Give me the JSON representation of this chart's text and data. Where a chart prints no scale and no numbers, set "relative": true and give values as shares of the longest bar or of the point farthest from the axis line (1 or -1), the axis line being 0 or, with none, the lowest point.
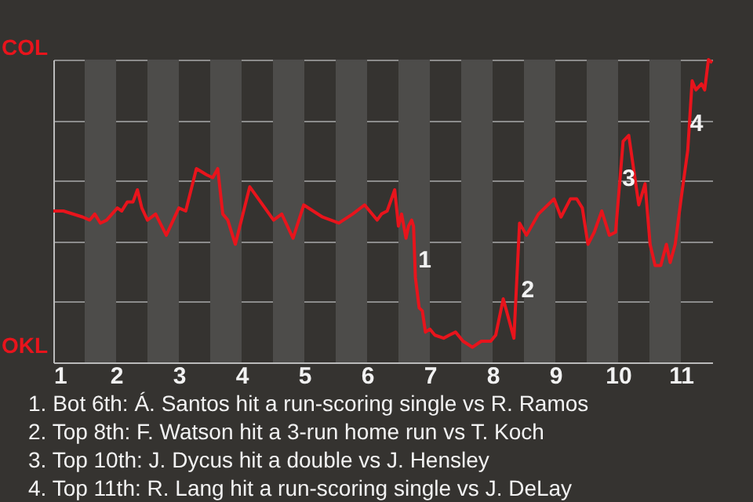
{
  "chart_data": {
    "type": "line",
    "relative": true,
    "x": [
      1,
      1.16,
      1.47,
      1.58,
      1.66,
      1.75,
      1.85,
      2.02,
      2.09,
      2.18,
      2.27,
      2.34,
      2.41,
      2.5,
      2.63,
      2.8,
      3,
      3.11,
      3.28,
      3.44,
      3.54,
      3.62,
      3.7,
      3.78,
      3.9,
      4.13,
      4.51,
      4.64,
      4.82,
      4.99,
      5.29,
      5.55,
      5.77,
      5.96,
      6.16,
      6.23,
      6.32,
      6.44,
      6.5,
      6.55,
      6.62,
      6.66,
      6.71,
      6.74,
      6.77,
      6.83,
      6.88,
      6.93,
      7,
      7.08,
      7.22,
      7.31,
      7.41,
      7.53,
      7.68,
      7.82,
      7.97,
      8.05,
      8.17,
      8.34,
      8.43,
      8.54,
      8.73,
      8.98,
      9.09,
      9.24,
      9.34,
      9.43,
      9.52,
      9.62,
      9.74,
      9.86,
      9.96,
      10.08,
      10.17,
      10.33,
      10.43,
      10.51,
      10.59,
      10.68,
      10.77,
      10.83,
      10.91,
      11.01,
      11.11,
      11.18,
      11.24,
      11.33,
      11.38,
      11.44,
      11.5
    ],
    "series": [
      {
        "color": "#e8141c",
        "values": [
          0.5,
          0.5,
          0.48,
          0.47,
          0.49,
          0.46,
          0.47,
          0.51,
          0.5,
          0.53,
          0.53,
          0.57,
          0.51,
          0.47,
          0.49,
          0.42,
          0.51,
          0.5,
          0.64,
          0.62,
          0.61,
          0.64,
          0.49,
          0.47,
          0.39,
          0.58,
          0.47,
          0.49,
          0.41,
          0.52,
          0.48,
          0.46,
          0.49,
          0.52,
          0.47,
          0.49,
          0.5,
          0.57,
          0.45,
          0.49,
          0.41,
          0.45,
          0.47,
          0.45,
          0.28,
          0.18,
          0.17,
          0.1,
          0.11,
          0.09,
          0.08,
          0.09,
          0.1,
          0.07,
          0.05,
          0.07,
          0.07,
          0.09,
          0.21,
          0.08,
          0.46,
          0.42,
          0.49,
          0.54,
          0.48,
          0.54,
          0.54,
          0.51,
          0.39,
          0.43,
          0.5,
          0.42,
          0.43,
          0.73,
          0.75,
          0.52,
          0.59,
          0.39,
          0.32,
          0.32,
          0.39,
          0.33,
          0.39,
          0.55,
          0.7,
          0.93,
          0.9,
          0.92,
          0.9,
          1,
          0.99
        ]
      }
    ],
    "xlim": [
      1,
      11.5
    ],
    "xticks": [
      1,
      2,
      3,
      4,
      5,
      6,
      7,
      8,
      9,
      10,
      11
    ],
    "grid": "y",
    "marker": "none",
    "line_style": "solid",
    "bands": [
      {
        "axis": "x",
        "from": 1.5,
        "to": 2,
        "color": "#4d4c4a"
      },
      {
        "axis": "x",
        "from": 2.5,
        "to": 3,
        "color": "#4d4c4a"
      },
      {
        "axis": "x",
        "from": 3.5,
        "to": 4,
        "color": "#4d4c4a"
      },
      {
        "axis": "x",
        "from": 4.5,
        "to": 5,
        "color": "#4d4c4a"
      },
      {
        "axis": "x",
        "from": 5.5,
        "to": 6,
        "color": "#4d4c4a"
      },
      {
        "axis": "x",
        "from": 6.5,
        "to": 7,
        "color": "#4d4c4a"
      },
      {
        "axis": "x",
        "from": 7.5,
        "to": 8,
        "color": "#4d4c4a"
      },
      {
        "axis": "x",
        "from": 8.5,
        "to": 9,
        "color": "#4d4c4a"
      },
      {
        "axis": "x",
        "from": 9.5,
        "to": 10,
        "color": "#4d4c4a"
      },
      {
        "axis": "x",
        "from": 10.5,
        "to": 11,
        "color": "#4d4c4a"
      }
    ],
    "annotations": [
      "COL",
      "OKL",
      {
        "text": "1",
        "x": 6.92,
        "y": 0.34
      },
      {
        "text": "2",
        "x": 8.56,
        "y": 0.24
      },
      {
        "text": "3",
        "x": 10.17,
        "y": 0.61
      },
      {
        "text": "4",
        "x": 11.25,
        "y": 0.79
      },
      "1. Bot 6th: Á. Santos hit a run-scoring single vs R. Ramos",
      "2. Top 8th: F. Watson hit a 3-run home run vs T. Koch",
      "3. Top 10th: J. Dycus hit a double vs J. Hensley",
      "4. Top 11th: R. Lang hit a run-scoring single vs J. DeLay"
    ]
  }
}
